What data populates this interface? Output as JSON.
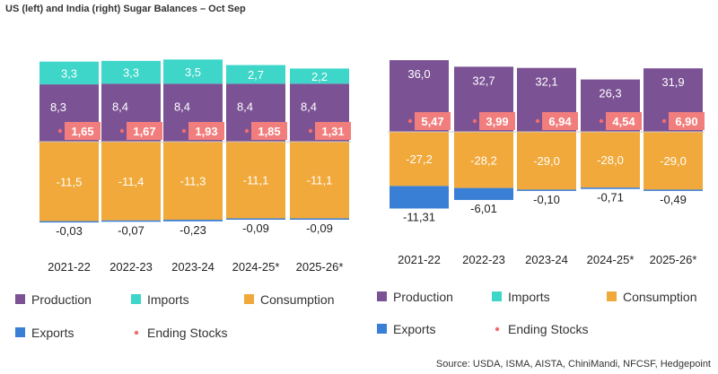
{
  "title": "US (left) and India (right) Sugar Balances – Oct Sep",
  "source": "Source: USDA, ISMA, AISTA, ChiniMandi, NFCSF, Hedgepoint",
  "colors": {
    "production": "#7b5294",
    "imports": "#3dd6c9",
    "consumption": "#f0a93a",
    "exports": "#3a7fd6",
    "ending_stocks": "#f27d7d",
    "ending_stocks_marker": "#f26d6d"
  },
  "legend": {
    "production": "Production",
    "imports": "Imports",
    "consumption": "Consumption",
    "exports": "Exports",
    "ending_stocks": "Ending Stocks"
  },
  "chart_data": [
    {
      "type": "bar",
      "stacked": true,
      "categories": [
        "2021-22",
        "2022-23",
        "2023-24",
        "2024-25*",
        "2025-26*"
      ],
      "series": [
        {
          "name": "Production",
          "values": [
            8.3,
            8.4,
            8.4,
            8.4,
            8.4
          ],
          "labels": [
            "8,3",
            "8,4",
            "8,4",
            "8,4",
            "8,4"
          ]
        },
        {
          "name": "Imports",
          "values": [
            3.3,
            3.3,
            3.5,
            2.7,
            2.2
          ],
          "labels": [
            "3,3",
            "3,3",
            "3,5",
            "2,7",
            "2,2"
          ]
        },
        {
          "name": "Consumption",
          "values": [
            -11.5,
            -11.4,
            -11.3,
            -11.1,
            -11.1
          ],
          "labels": [
            "-11,5",
            "-11,4",
            "-11,3",
            "-11,1",
            "-11,1"
          ]
        },
        {
          "name": "Exports",
          "values": [
            -0.03,
            -0.07,
            -0.23,
            -0.09,
            -0.09
          ],
          "labels": [
            "-0,03",
            "-0,07",
            "-0,23",
            "-0,09",
            "-0,09"
          ]
        },
        {
          "name": "Ending Stocks",
          "values": [
            1.65,
            1.67,
            1.93,
            1.85,
            1.31
          ],
          "labels": [
            "1,65",
            "1,67",
            "1,93",
            "1,85",
            "1,31"
          ]
        }
      ],
      "legend_position": "bottom"
    },
    {
      "type": "bar",
      "stacked": true,
      "categories": [
        "2021-22",
        "2022-23",
        "2023-24",
        "2024-25*",
        "2025-26*"
      ],
      "series": [
        {
          "name": "Production",
          "values": [
            36.0,
            32.7,
            32.1,
            26.3,
            31.9
          ],
          "labels": [
            "36,0",
            "32,7",
            "32,1",
            "26,3",
            "31,9"
          ]
        },
        {
          "name": "Imports",
          "values": [
            0,
            0,
            0,
            0,
            0
          ]
        },
        {
          "name": "Consumption",
          "values": [
            -27.2,
            -28.2,
            -29.0,
            -28.0,
            -29.0
          ],
          "labels": [
            "-27,2",
            "-28,2",
            "-29,0",
            "-28,0",
            "-29,0"
          ]
        },
        {
          "name": "Exports",
          "values": [
            -11.31,
            -6.01,
            -0.1,
            -0.71,
            -0.49
          ],
          "labels": [
            "-11,31",
            "-6,01",
            "-0,10",
            "-0,71",
            "-0,49"
          ]
        },
        {
          "name": "Ending Stocks",
          "values": [
            5.47,
            3.99,
            6.94,
            4.54,
            6.9
          ],
          "labels": [
            "5,47",
            "3,99",
            "6,94",
            "4,54",
            "6,90"
          ]
        }
      ],
      "legend_position": "bottom"
    }
  ]
}
